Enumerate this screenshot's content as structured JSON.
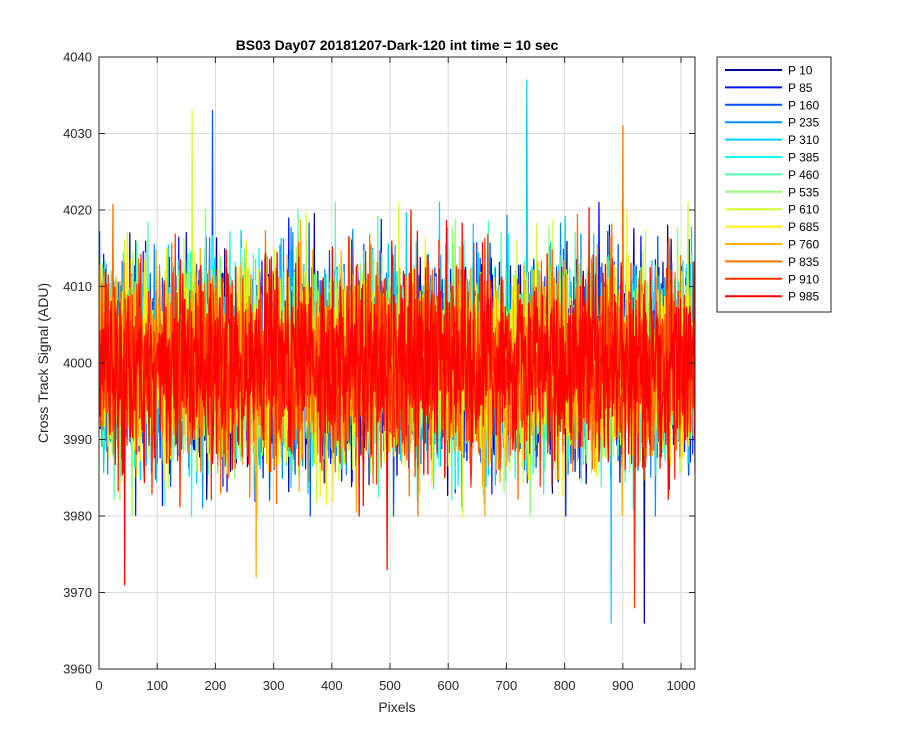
{
  "chart_data": {
    "type": "line",
    "title": "BS03 Day07 20181207-Dark-120 int time = 10 sec",
    "xlabel": "Pixels",
    "ylabel": "Cross Track Signal (ADU)",
    "xlim": [
      0,
      1024
    ],
    "ylim": [
      3960,
      4040
    ],
    "xticks": [
      "0",
      "100",
      "200",
      "300",
      "400",
      "500",
      "600",
      "700",
      "800",
      "900",
      "1000"
    ],
    "yticks": [
      "3960",
      "3970",
      "3980",
      "3990",
      "4000",
      "4010",
      "4020",
      "4030",
      "4040"
    ],
    "grid": true,
    "legend_position": "outside-right",
    "noise_summary": {
      "mean": 4000,
      "typical_min": 3980,
      "typical_max": 4021,
      "extreme_min": 3966,
      "extreme_max": 4037
    },
    "series": [
      {
        "name": "P 10",
        "color": "#00008f"
      },
      {
        "name": "P 85",
        "color": "#0010ff"
      },
      {
        "name": "P 160",
        "color": "#0050ff"
      },
      {
        "name": "P 235",
        "color": "#0090ff"
      },
      {
        "name": "P 310",
        "color": "#00d0ff"
      },
      {
        "name": "P 385",
        "color": "#10ffef"
      },
      {
        "name": "P 460",
        "color": "#50ffaf"
      },
      {
        "name": "P 535",
        "color": "#90ff6f"
      },
      {
        "name": "P 610",
        "color": "#d0ff2f"
      },
      {
        "name": "P 685",
        "color": "#ffef00"
      },
      {
        "name": "P 760",
        "color": "#ffaf00"
      },
      {
        "name": "P 835",
        "color": "#ff7000"
      },
      {
        "name": "P 910",
        "color": "#ff3000"
      },
      {
        "name": "P 985",
        "color": "#ff0000"
      }
    ],
    "annotated_extremes": [
      {
        "series": "P 10",
        "x": 937,
        "y": 3966
      },
      {
        "series": "P 310",
        "x": 880,
        "y": 3966
      },
      {
        "series": "P 310",
        "x": 735,
        "y": 4037
      },
      {
        "series": "P 160",
        "x": 195,
        "y": 4033
      },
      {
        "series": "P 610",
        "x": 160,
        "y": 4033
      },
      {
        "series": "P 910",
        "x": 920,
        "y": 3968
      },
      {
        "series": "P 985",
        "x": 44,
        "y": 3971
      },
      {
        "series": "P 985",
        "x": 495,
        "y": 3973
      },
      {
        "series": "P 760",
        "x": 270,
        "y": 3972
      },
      {
        "series": "P 835",
        "x": 900,
        "y": 4031
      }
    ]
  }
}
